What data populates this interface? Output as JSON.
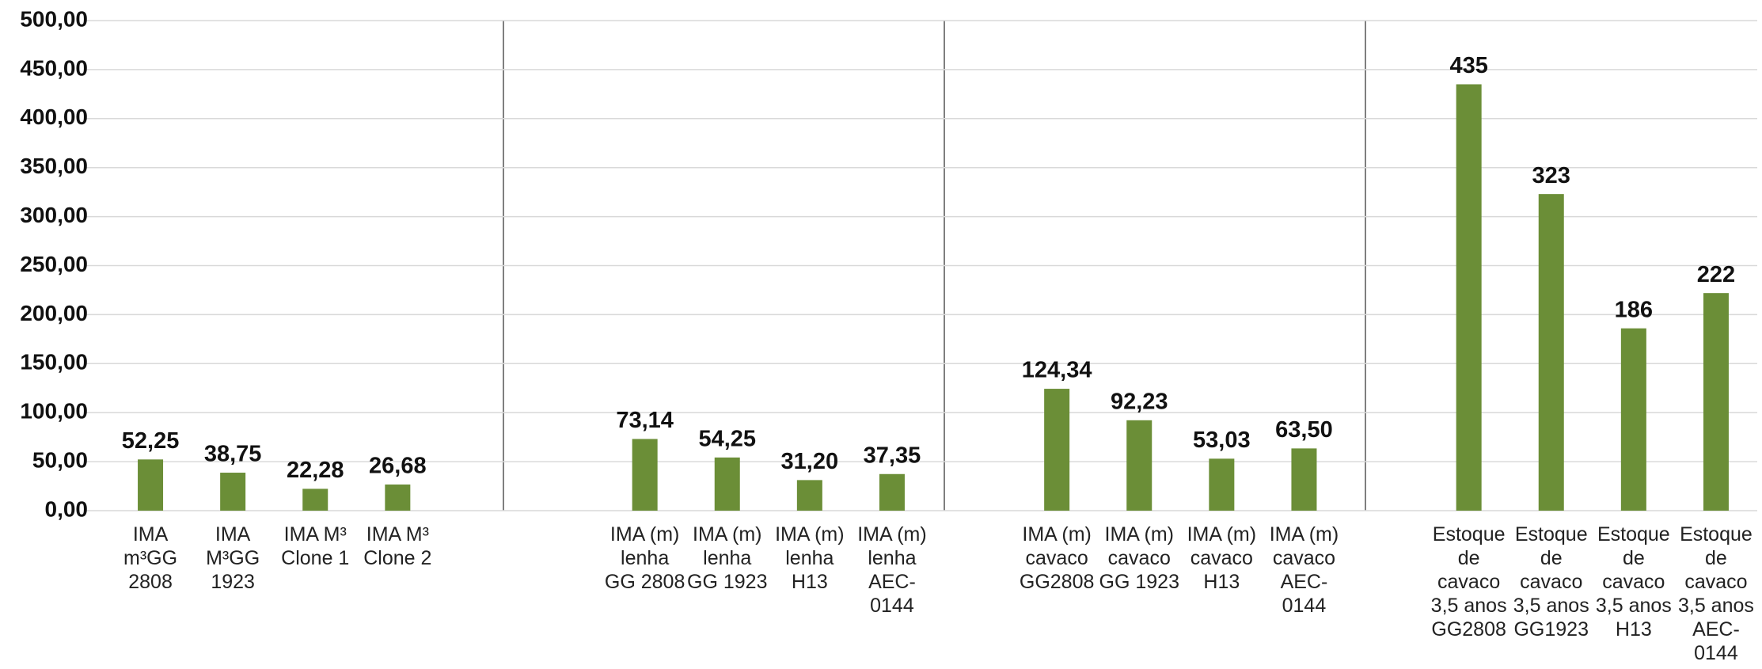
{
  "chart_data": {
    "type": "bar",
    "categories": [
      "IMA m³GG 2808",
      "IMA M³GG 1923",
      "IMA M³ Clone 1",
      "IMA M³ Clone 2",
      null,
      null,
      "IMA (m) lenha GG 2808",
      "IMA (m) lenha GG 1923",
      "IMA (m) lenha H13",
      "IMA (m) lenha AEC-0144",
      null,
      "IMA (m) cavaco GG2808",
      "IMA (m) cavaco GG 1923",
      "IMA (m) cavaco H13",
      "IMA (m) cavaco AEC-0144",
      null,
      "Estoque de cavaco 3,5 anos GG2808",
      "Estoque de cavaco 3,5 anos GG1923",
      "Estoque de cavaco 3,5 anos H13",
      "Estoque de cavaco 3,5 anos AEC-0144"
    ],
    "values": [
      52.25,
      38.75,
      22.28,
      26.68,
      null,
      null,
      73.14,
      54.25,
      31.2,
      37.35,
      null,
      124.34,
      92.23,
      53.03,
      63.5,
      null,
      435,
      323,
      186,
      222
    ],
    "value_labels": [
      "52,25",
      "38,75",
      "22,28",
      "26,68",
      null,
      null,
      "73,14",
      "54,25",
      "31,20",
      "37,35",
      null,
      "124,34",
      "92,23",
      "53,03",
      "63,50",
      null,
      "435",
      "323",
      "186",
      "222"
    ],
    "color": "#6b8e37",
    "ylim": [
      0,
      500
    ],
    "yticks": [
      {
        "value": 0,
        "label": "0,00"
      },
      {
        "value": 50,
        "label": "50,00"
      },
      {
        "value": 100,
        "label": "100,00"
      },
      {
        "value": 150,
        "label": "150,00"
      },
      {
        "value": 200,
        "label": "200,00"
      },
      {
        "value": 250,
        "label": "250,00"
      },
      {
        "value": 300,
        "label": "300,00"
      },
      {
        "value": 350,
        "label": "350,00"
      },
      {
        "value": 400,
        "label": "400,00"
      },
      {
        "value": 450,
        "label": "450,00"
      },
      {
        "value": 500,
        "label": "500,00"
      }
    ],
    "grid": true
  }
}
